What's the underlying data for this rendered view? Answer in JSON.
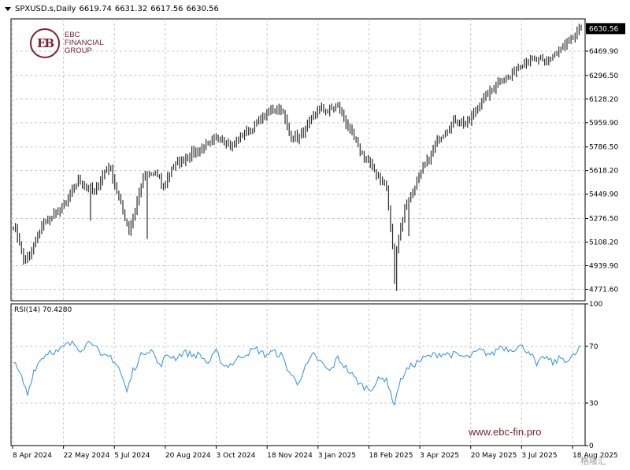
{
  "header": {
    "symbol": "SPXUSD.s,Daily",
    "open": "6619.74",
    "high": "6631.32",
    "low": "6617.56",
    "close": "6630.56"
  },
  "logo": {
    "mark": "EB",
    "lines": [
      "EBC",
      "FINANCIAL",
      "GROUP"
    ]
  },
  "watermark": "www.ebc-fin.pro",
  "corner_mark": "格隆汇",
  "indicator": {
    "label": "RSI(14) 70.4280"
  },
  "colors": {
    "price": "#2b2b2b",
    "rsi": "#2f8fe0",
    "grid": "#c8c8c8",
    "brand": "#7a2230"
  },
  "chart_data": [
    {
      "type": "bar",
      "panel": "price",
      "ylim": [
        4690,
        6700
      ],
      "yticks": [
        "6469.90",
        "6296.50",
        "6128.20",
        "5959.90",
        "5786.50",
        "5618.20",
        "5449.90",
        "5276.50",
        "5108.20",
        "4939.90",
        "4771.60"
      ],
      "last_price": "6630.56",
      "xticks": [
        "8 Apr 2024",
        "22 May 2024",
        "5 Jul 2024",
        "20 Aug 2024",
        "3 Oct 2024",
        "18 Nov 2024",
        "3 Jan 2025",
        "18 Feb 2025",
        "3 Apr 2025",
        "20 May 2025",
        "3 Jul 2025",
        "18 Aug 2025"
      ],
      "anchors": [
        [
          0,
          5230
        ],
        [
          3,
          5110
        ],
        [
          5,
          4980
        ],
        [
          8,
          5010
        ],
        [
          14,
          5230
        ],
        [
          20,
          5300
        ],
        [
          26,
          5390
        ],
        [
          32,
          5550
        ],
        [
          40,
          5470
        ],
        [
          46,
          5640
        ],
        [
          48,
          5630
        ],
        [
          52,
          5420
        ],
        [
          55,
          5280
        ],
        [
          57,
          5190
        ],
        [
          60,
          5340
        ],
        [
          64,
          5570
        ],
        [
          70,
          5600
        ],
        [
          74,
          5500
        ],
        [
          78,
          5640
        ],
        [
          84,
          5700
        ],
        [
          90,
          5760
        ],
        [
          96,
          5800
        ],
        [
          102,
          5860
        ],
        [
          108,
          5790
        ],
        [
          113,
          5880
        ],
        [
          118,
          5920
        ],
        [
          123,
          6000
        ],
        [
          128,
          6060
        ],
        [
          132,
          6070
        ],
        [
          136,
          5880
        ],
        [
          140,
          5850
        ],
        [
          145,
          5930
        ],
        [
          150,
          6060
        ],
        [
          155,
          6040
        ],
        [
          160,
          6080
        ],
        [
          165,
          5930
        ],
        [
          170,
          5780
        ],
        [
          175,
          5680
        ],
        [
          180,
          5580
        ],
        [
          184,
          5500
        ],
        [
          186,
          5200
        ],
        [
          188,
          4980
        ],
        [
          190,
          5140
        ],
        [
          193,
          5350
        ],
        [
          197,
          5480
        ],
        [
          203,
          5660
        ],
        [
          210,
          5850
        ],
        [
          218,
          5980
        ],
        [
          224,
          5950
        ],
        [
          230,
          6100
        ],
        [
          236,
          6200
        ],
        [
          240,
          6260
        ],
        [
          245,
          6290
        ],
        [
          250,
          6380
        ],
        [
          256,
          6410
        ],
        [
          262,
          6390
        ],
        [
          268,
          6460
        ],
        [
          274,
          6530
        ],
        [
          278,
          6600
        ],
        [
          280,
          6630
        ]
      ],
      "dips": [
        [
          66,
          5130
        ],
        [
          189,
          4760
        ],
        [
          188,
          4810
        ],
        [
          195,
          5150
        ],
        [
          38,
          5260
        ]
      ]
    },
    {
      "type": "line",
      "panel": "indicator",
      "ylim": [
        0,
        100
      ],
      "yticks": [
        "100",
        "70",
        "30",
        "0"
      ],
      "anchors": [
        [
          0,
          59
        ],
        [
          4,
          48
        ],
        [
          7,
          36
        ],
        [
          10,
          53
        ],
        [
          14,
          62
        ],
        [
          18,
          67
        ],
        [
          22,
          66
        ],
        [
          26,
          71
        ],
        [
          30,
          72
        ],
        [
          33,
          68
        ],
        [
          38,
          74
        ],
        [
          40,
          73
        ],
        [
          43,
          62
        ],
        [
          48,
          63
        ],
        [
          52,
          55
        ],
        [
          56,
          38
        ],
        [
          59,
          53
        ],
        [
          64,
          66
        ],
        [
          68,
          68
        ],
        [
          72,
          56
        ],
        [
          76,
          64
        ],
        [
          80,
          62
        ],
        [
          84,
          66
        ],
        [
          88,
          64
        ],
        [
          92,
          64
        ],
        [
          96,
          58
        ],
        [
          100,
          66
        ],
        [
          104,
          56
        ],
        [
          108,
          58
        ],
        [
          112,
          63
        ],
        [
          116,
          66
        ],
        [
          120,
          68
        ],
        [
          124,
          64
        ],
        [
          128,
          66
        ],
        [
          132,
          64
        ],
        [
          136,
          52
        ],
        [
          140,
          44
        ],
        [
          144,
          55
        ],
        [
          148,
          64
        ],
        [
          152,
          58
        ],
        [
          156,
          52
        ],
        [
          160,
          62
        ],
        [
          164,
          55
        ],
        [
          168,
          48
        ],
        [
          172,
          42
        ],
        [
          176,
          40
        ],
        [
          180,
          46
        ],
        [
          184,
          48
        ],
        [
          186,
          36
        ],
        [
          188,
          30
        ],
        [
          190,
          42
        ],
        [
          193,
          52
        ],
        [
          197,
          57
        ],
        [
          203,
          62
        ],
        [
          210,
          65
        ],
        [
          218,
          64
        ],
        [
          224,
          62
        ],
        [
          230,
          67
        ],
        [
          236,
          64
        ],
        [
          240,
          70
        ],
        [
          245,
          68
        ],
        [
          250,
          70
        ],
        [
          255,
          66
        ],
        [
          258,
          56
        ],
        [
          262,
          63
        ],
        [
          266,
          58
        ],
        [
          270,
          62
        ],
        [
          274,
          60
        ],
        [
          278,
          66
        ],
        [
          280,
          70.43
        ]
      ]
    }
  ]
}
